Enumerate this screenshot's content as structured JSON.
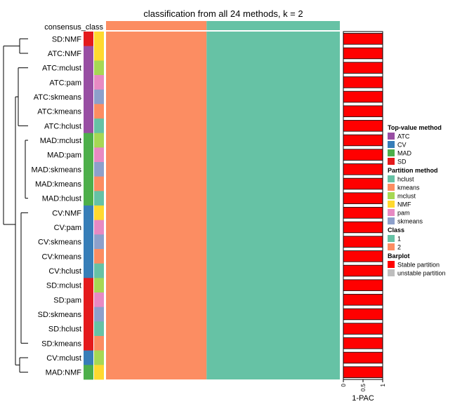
{
  "chart_data": {
    "type": "heatmap",
    "title": "classification from all 24 methods, k = 2",
    "consensus_label": "consensus_class",
    "consensus_class": [
      "2",
      "1"
    ],
    "consensus_split_fraction": 0.43,
    "rows": [
      {
        "label": "SD:NMF",
        "top": "SD",
        "partition": "NMF",
        "pac": 1
      },
      {
        "label": "ATC:NMF",
        "top": "ATC",
        "partition": "NMF",
        "pac": 1
      },
      {
        "label": "ATC:mclust",
        "top": "ATC",
        "partition": "mclust",
        "pac": 1
      },
      {
        "label": "ATC:pam",
        "top": "ATC",
        "partition": "pam",
        "pac": 1
      },
      {
        "label": "ATC:skmeans",
        "top": "ATC",
        "partition": "skmeans",
        "pac": 1
      },
      {
        "label": "ATC:kmeans",
        "top": "ATC",
        "partition": "kmeans",
        "pac": 1
      },
      {
        "label": "ATC:hclust",
        "top": "ATC",
        "partition": "hclust",
        "pac": 1
      },
      {
        "label": "MAD:mclust",
        "top": "MAD",
        "partition": "mclust",
        "pac": 1
      },
      {
        "label": "MAD:pam",
        "top": "MAD",
        "partition": "pam",
        "pac": 1
      },
      {
        "label": "MAD:skmeans",
        "top": "MAD",
        "partition": "skmeans",
        "pac": 1
      },
      {
        "label": "MAD:kmeans",
        "top": "MAD",
        "partition": "kmeans",
        "pac": 1
      },
      {
        "label": "MAD:hclust",
        "top": "MAD",
        "partition": "hclust",
        "pac": 1
      },
      {
        "label": "CV:NMF",
        "top": "CV",
        "partition": "NMF",
        "pac": 1
      },
      {
        "label": "CV:pam",
        "top": "CV",
        "partition": "pam",
        "pac": 1
      },
      {
        "label": "CV:skmeans",
        "top": "CV",
        "partition": "skmeans",
        "pac": 1
      },
      {
        "label": "CV:kmeans",
        "top": "CV",
        "partition": "kmeans",
        "pac": 1
      },
      {
        "label": "CV:hclust",
        "top": "CV",
        "partition": "hclust",
        "pac": 1
      },
      {
        "label": "SD:mclust",
        "top": "SD",
        "partition": "mclust",
        "pac": 1
      },
      {
        "label": "SD:pam",
        "top": "SD",
        "partition": "pam",
        "pac": 1
      },
      {
        "label": "SD:skmeans",
        "top": "SD",
        "partition": "skmeans",
        "pac": 1
      },
      {
        "label": "SD:hclust",
        "top": "SD",
        "partition": "hclust",
        "pac": 1
      },
      {
        "label": "SD:kmeans",
        "top": "SD",
        "partition": "kmeans",
        "pac": 1
      },
      {
        "label": "CV:mclust",
        "top": "CV",
        "partition": "mclust",
        "pac": 1
      },
      {
        "label": "MAD:NMF",
        "top": "MAD",
        "partition": "NMF",
        "pac": 1
      }
    ],
    "barplot_axis": {
      "label": "1-PAC",
      "ticks": [
        "0",
        "0.5",
        "1"
      ],
      "range": [
        0,
        1
      ]
    },
    "legend_placement": "right",
    "legends": [
      {
        "title": "Top-value method",
        "items": [
          {
            "label": "ATC",
            "color": "#984EA3"
          },
          {
            "label": "CV",
            "color": "#377EB8"
          },
          {
            "label": "MAD",
            "color": "#4DAF4A"
          },
          {
            "label": "SD",
            "color": "#E41A1C"
          }
        ]
      },
      {
        "title": "Partition method",
        "items": [
          {
            "label": "hclust",
            "color": "#66C2A5"
          },
          {
            "label": "kmeans",
            "color": "#FC8D62"
          },
          {
            "label": "mclust",
            "color": "#A6D854"
          },
          {
            "label": "NMF",
            "color": "#FFD92F"
          },
          {
            "label": "pam",
            "color": "#E78AC3"
          },
          {
            "label": "skmeans",
            "color": "#8DA0CB"
          }
        ]
      },
      {
        "title": "Class",
        "items": [
          {
            "label": "1",
            "color": "#66C2A5"
          },
          {
            "label": "2",
            "color": "#FC8D62"
          }
        ]
      },
      {
        "title": "Barplot",
        "items": [
          {
            "label": "Stable partition",
            "color": "#FF0000"
          },
          {
            "label": "unstable partition",
            "color": "#BEBEBE"
          }
        ]
      }
    ]
  }
}
